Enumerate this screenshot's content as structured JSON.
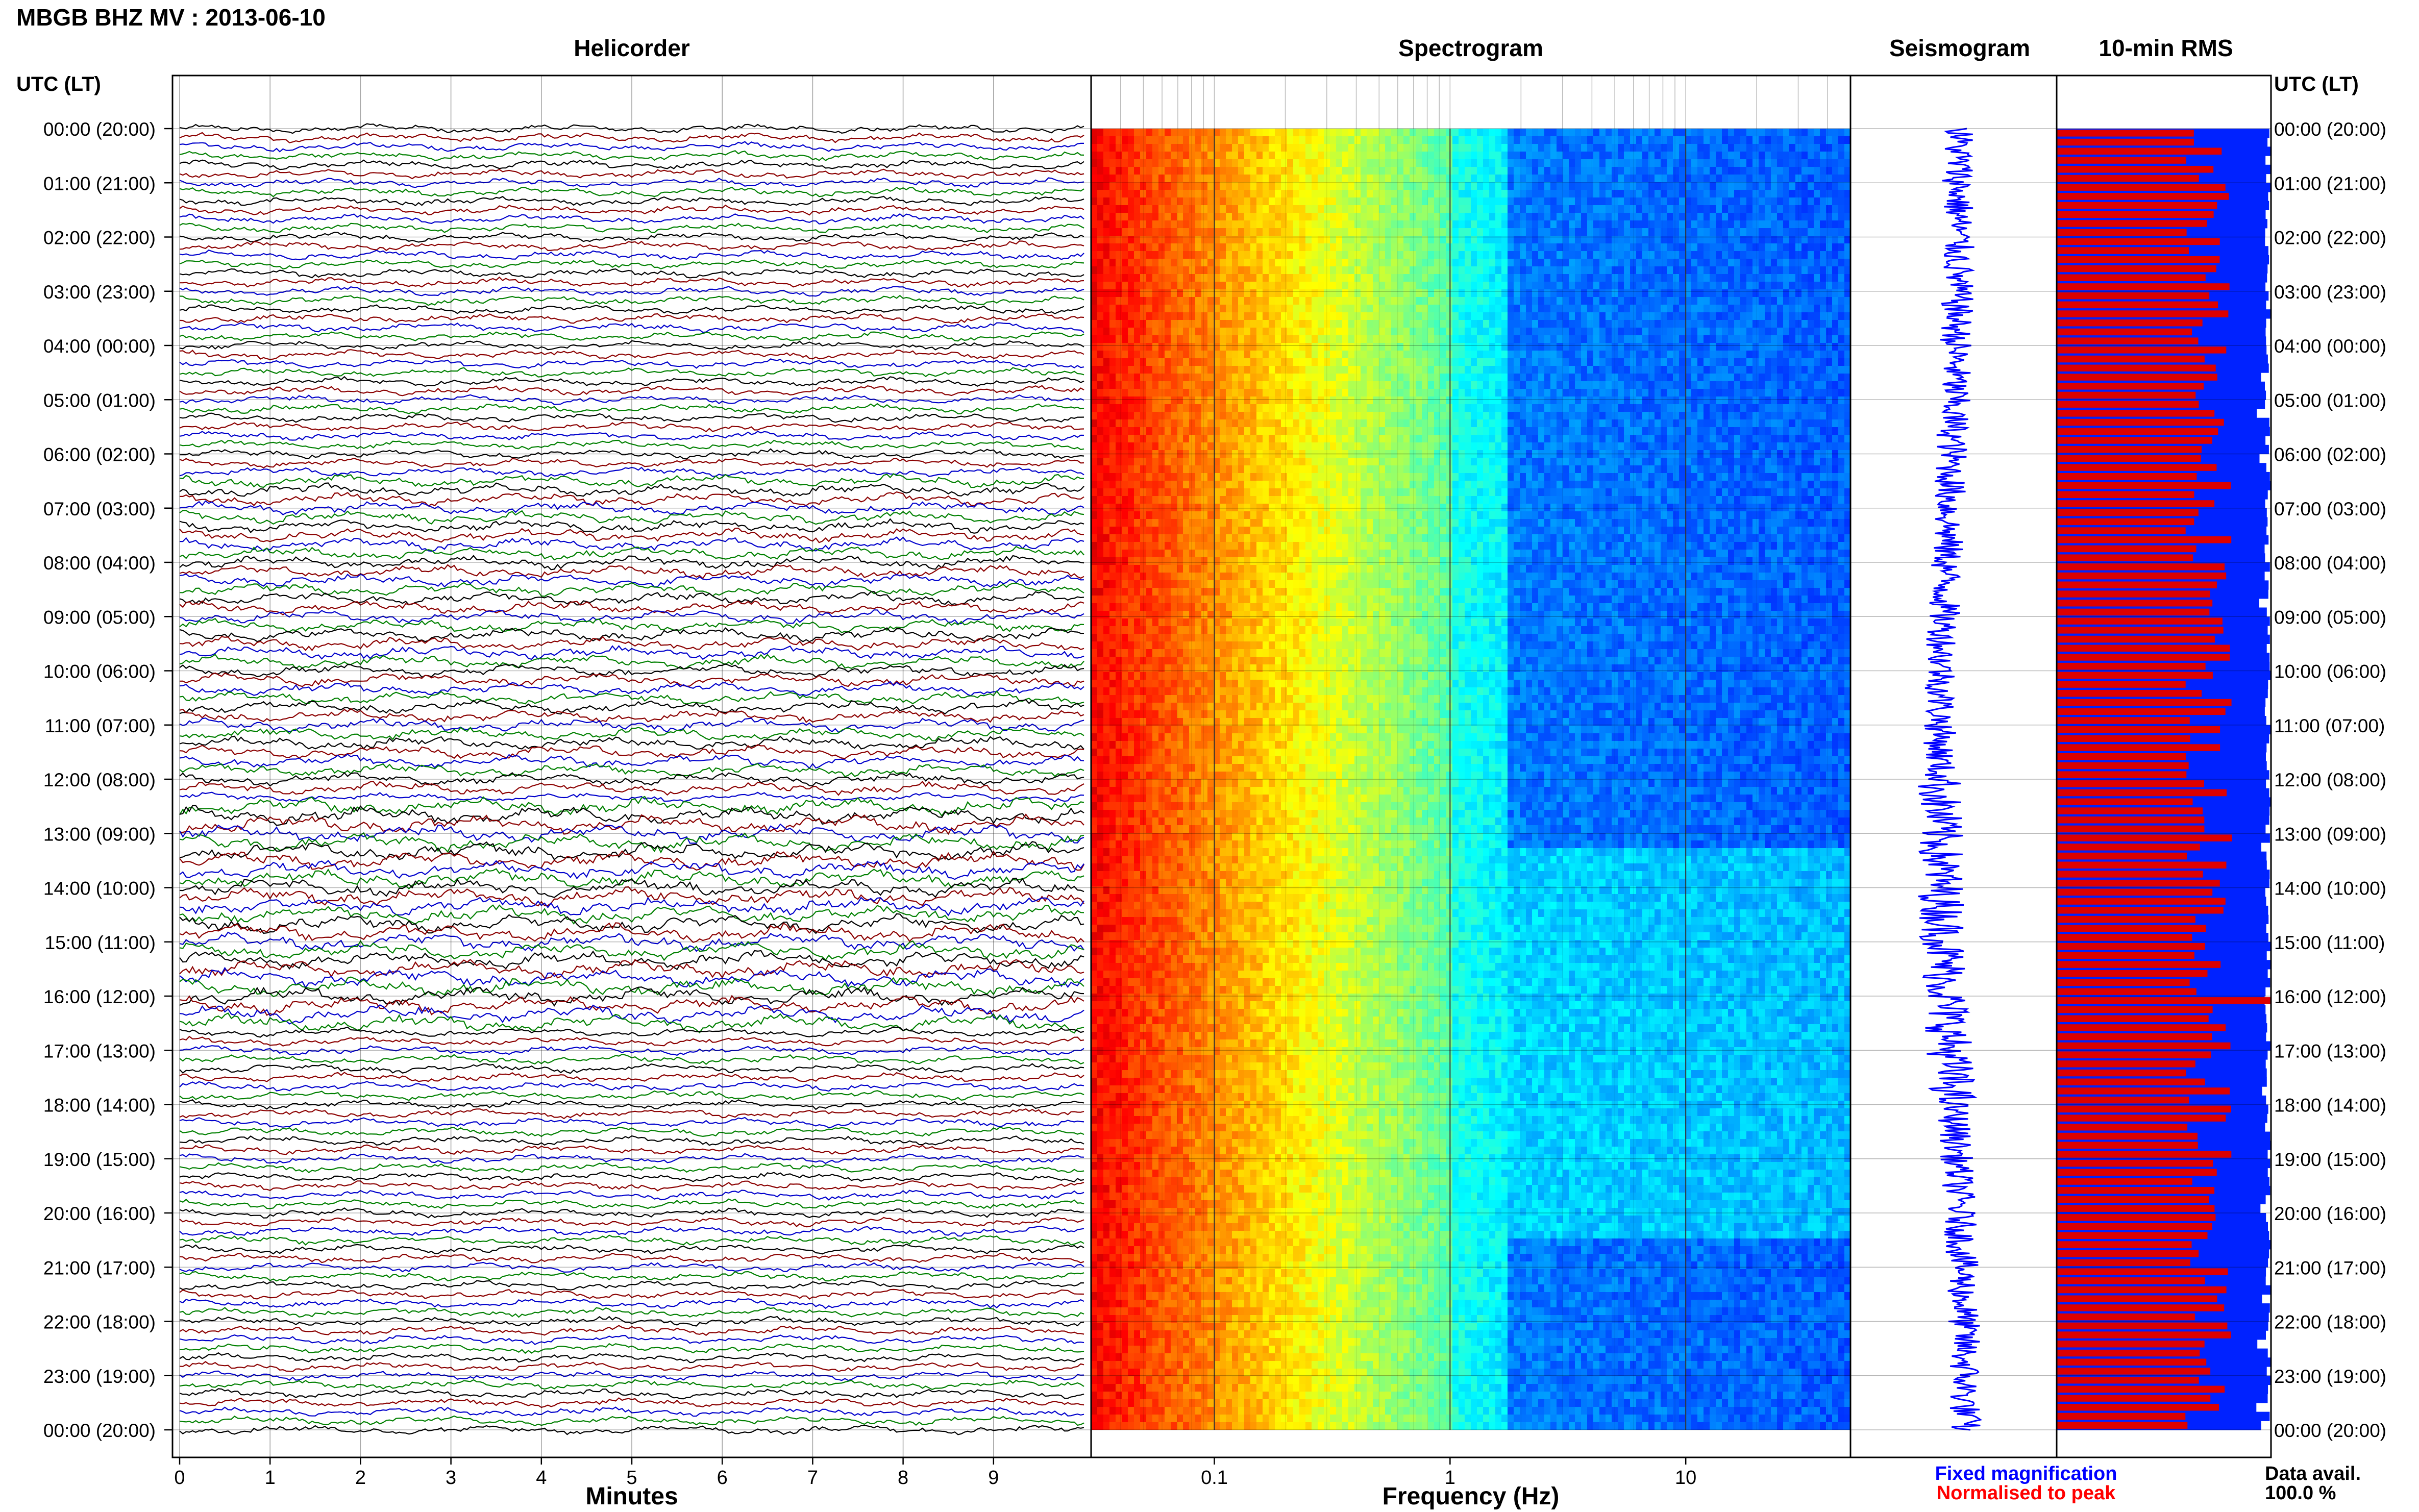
{
  "page_title": "MBGB BHZ MV : 2013-06-10",
  "time_axis_label": "UTC (LT)",
  "time_labels": [
    "00:00 (20:00)",
    "01:00 (21:00)",
    "02:00 (22:00)",
    "03:00 (23:00)",
    "04:00 (00:00)",
    "05:00 (01:00)",
    "06:00 (02:00)",
    "07:00 (03:00)",
    "08:00 (04:00)",
    "09:00 (05:00)",
    "10:00 (06:00)",
    "11:00 (07:00)",
    "12:00 (08:00)",
    "13:00 (09:00)",
    "14:00 (10:00)",
    "15:00 (11:00)",
    "16:00 (12:00)",
    "17:00 (13:00)",
    "18:00 (14:00)",
    "19:00 (15:00)",
    "20:00 (16:00)",
    "21:00 (17:00)",
    "22:00 (18:00)",
    "23:00 (19:00)",
    "00:00 (20:00)"
  ],
  "colors": {
    "trace_colors": [
      "#000000",
      "#8b0000",
      "#0000cc",
      "#008000"
    ],
    "rms_fixed": "#0022ff",
    "rms_normalised": "#dd0000",
    "fixed_label": "#0000ff",
    "normalised_label": "#ff0000",
    "seismogram": "#0000ff"
  },
  "chart_data": [
    {
      "panel": "helicorder",
      "type": "line",
      "title": "Helicorder",
      "xlabel": "Minutes",
      "x_ticks": [
        "0",
        "1",
        "2",
        "3",
        "4",
        "5",
        "6",
        "7",
        "8",
        "9"
      ],
      "xlim": [
        0,
        10
      ],
      "rows_per_hour": 6,
      "hours": 24,
      "trace_color_cycle": [
        "black",
        "dark-red",
        "blue",
        "green"
      ]
    },
    {
      "panel": "spectrogram",
      "type": "heatmap",
      "title": "Spectrogram",
      "xlabel": "Frequency (Hz)",
      "x_scale": "log",
      "xlim": [
        0.03,
        50
      ],
      "x_ticks": [
        "0.1",
        "1",
        "10"
      ],
      "x_tick_values": [
        0.1,
        1,
        10
      ],
      "colormap": "jet",
      "hours": 24
    },
    {
      "panel": "seismogram",
      "type": "line",
      "title": "Seismogram",
      "hours": 24
    },
    {
      "panel": "rms",
      "type": "bar",
      "title": "10-min RMS",
      "orientation": "horizontal",
      "bins": 144,
      "series": [
        {
          "name": "Fixed magnification"
        },
        {
          "name": "Normalised to peak"
        }
      ]
    }
  ],
  "legend": {
    "fixed": "Fixed magnification",
    "normalised": "Normalised to peak"
  },
  "data_avail": {
    "label": "Data avail.",
    "value": "100.0 %"
  }
}
